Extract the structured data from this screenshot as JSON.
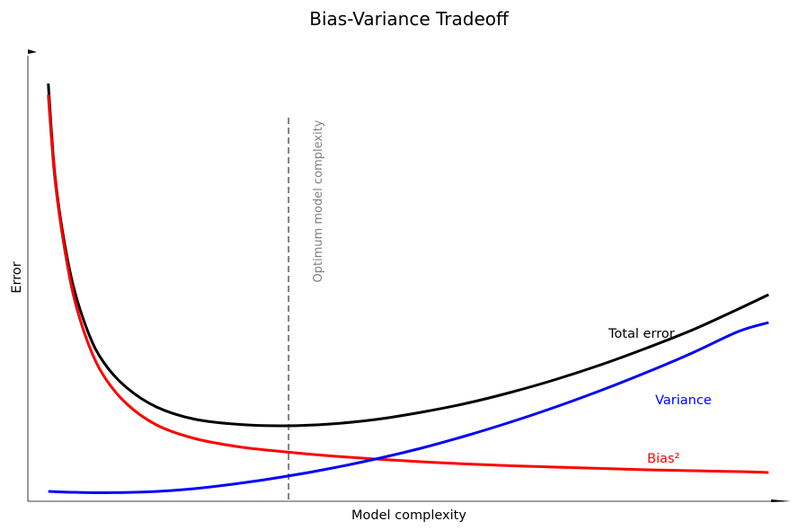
{
  "chart_data": {
    "type": "line",
    "title": "Bias-Variance Tradeoff",
    "xlabel": "Model complexity",
    "ylabel": "Error",
    "xticks": "none",
    "yticks": "none",
    "axes_arrows": true,
    "grid": false,
    "legend": "none (series labelled inline)",
    "xlim": [
      0,
      1
    ],
    "ylim": [
      0,
      1
    ],
    "series": [
      {
        "name": "Total error",
        "color": "#000000",
        "x": [
          0.027,
          0.035,
          0.045,
          0.06,
          0.08,
          0.1,
          0.13,
          0.17,
          0.22,
          0.28,
          0.34,
          0.4,
          0.46,
          0.52,
          0.58,
          0.64,
          0.7,
          0.76,
          0.82,
          0.88,
          0.94,
          0.98
        ],
        "y": [
          0.93,
          0.74,
          0.61,
          0.48,
          0.375,
          0.31,
          0.254,
          0.21,
          0.183,
          0.171,
          0.168,
          0.172,
          0.182,
          0.198,
          0.218,
          0.243,
          0.272,
          0.305,
          0.342,
          0.382,
          0.428,
          0.46
        ]
      },
      {
        "name": "Bias²",
        "color": "#ff0000",
        "x": [
          0.027,
          0.035,
          0.045,
          0.06,
          0.08,
          0.1,
          0.13,
          0.17,
          0.22,
          0.28,
          0.34,
          0.4,
          0.46,
          0.52,
          0.58,
          0.64,
          0.7,
          0.76,
          0.82,
          0.88,
          0.94,
          0.98
        ],
        "y": [
          0.905,
          0.73,
          0.6,
          0.46,
          0.35,
          0.28,
          0.218,
          0.17,
          0.14,
          0.121,
          0.11,
          0.101,
          0.094,
          0.088,
          0.083,
          0.079,
          0.076,
          0.073,
          0.07,
          0.068,
          0.066,
          0.064
        ]
      },
      {
        "name": "Variance",
        "color": "#0000ff",
        "x": [
          0.027,
          0.06,
          0.1,
          0.16,
          0.22,
          0.28,
          0.34,
          0.4,
          0.46,
          0.52,
          0.58,
          0.64,
          0.7,
          0.76,
          0.82,
          0.88,
          0.94,
          0.98
        ],
        "y": [
          0.022,
          0.02,
          0.019,
          0.021,
          0.028,
          0.04,
          0.055,
          0.073,
          0.094,
          0.118,
          0.146,
          0.177,
          0.211,
          0.248,
          0.288,
          0.331,
          0.378,
          0.398
        ]
      }
    ],
    "annotations": [
      {
        "text": "Optimum model complexity",
        "x": 0.345,
        "color": "#808080",
        "style": "dashed vertical line, rotated label"
      }
    ],
    "series_labels": [
      {
        "text": "Total error",
        "color": "#000000"
      },
      {
        "text": "Variance",
        "color": "#0000ff"
      },
      {
        "text": "Bias²",
        "color": "#ff0000"
      }
    ]
  }
}
